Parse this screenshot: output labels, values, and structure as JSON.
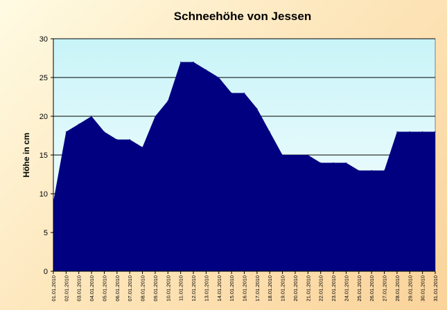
{
  "chart_data": {
    "type": "area",
    "title": "Schneehöhe von Jessen",
    "xlabel": "",
    "ylabel": "Höhe in cm",
    "ylim": [
      0,
      30
    ],
    "yticks": [
      0,
      5,
      10,
      15,
      20,
      25,
      30
    ],
    "grid": true,
    "legend": "none",
    "categories": [
      "01.01.2010",
      "02.01.2010",
      "03.01.2010",
      "04.01.2010",
      "05.01.2010",
      "06.01.2010",
      "07.01.2010",
      "08.01.2010",
      "09.01.2010",
      "10.01.2010",
      "11.01.2010",
      "12.01.2010",
      "13.01.2010",
      "14.01.2010",
      "15.01.2010",
      "16.01.2010",
      "17.01.2010",
      "18.01.2010",
      "19.01.2010",
      "20.01.2010",
      "21.01.2010",
      "22.01.2010",
      "23.01.2010",
      "24.01.2010",
      "25.01.2010",
      "26.01.2010",
      "27.01.2010",
      "28.01.2010",
      "29.01.2010",
      "30.01.2010",
      "31.01.2010"
    ],
    "series": [
      {
        "values": [
          9,
          18,
          19,
          20,
          18,
          17,
          17,
          16,
          20,
          22,
          27,
          27,
          26,
          25,
          23,
          23,
          21,
          18,
          15,
          15,
          15,
          14,
          14,
          14,
          13,
          13,
          13,
          18,
          18,
          18,
          18
        ],
        "color": "#000080"
      }
    ],
    "colors": {
      "plot_top": "#c8f4f8",
      "plot_bottom": "#ffffff",
      "frame": "#808080"
    }
  }
}
